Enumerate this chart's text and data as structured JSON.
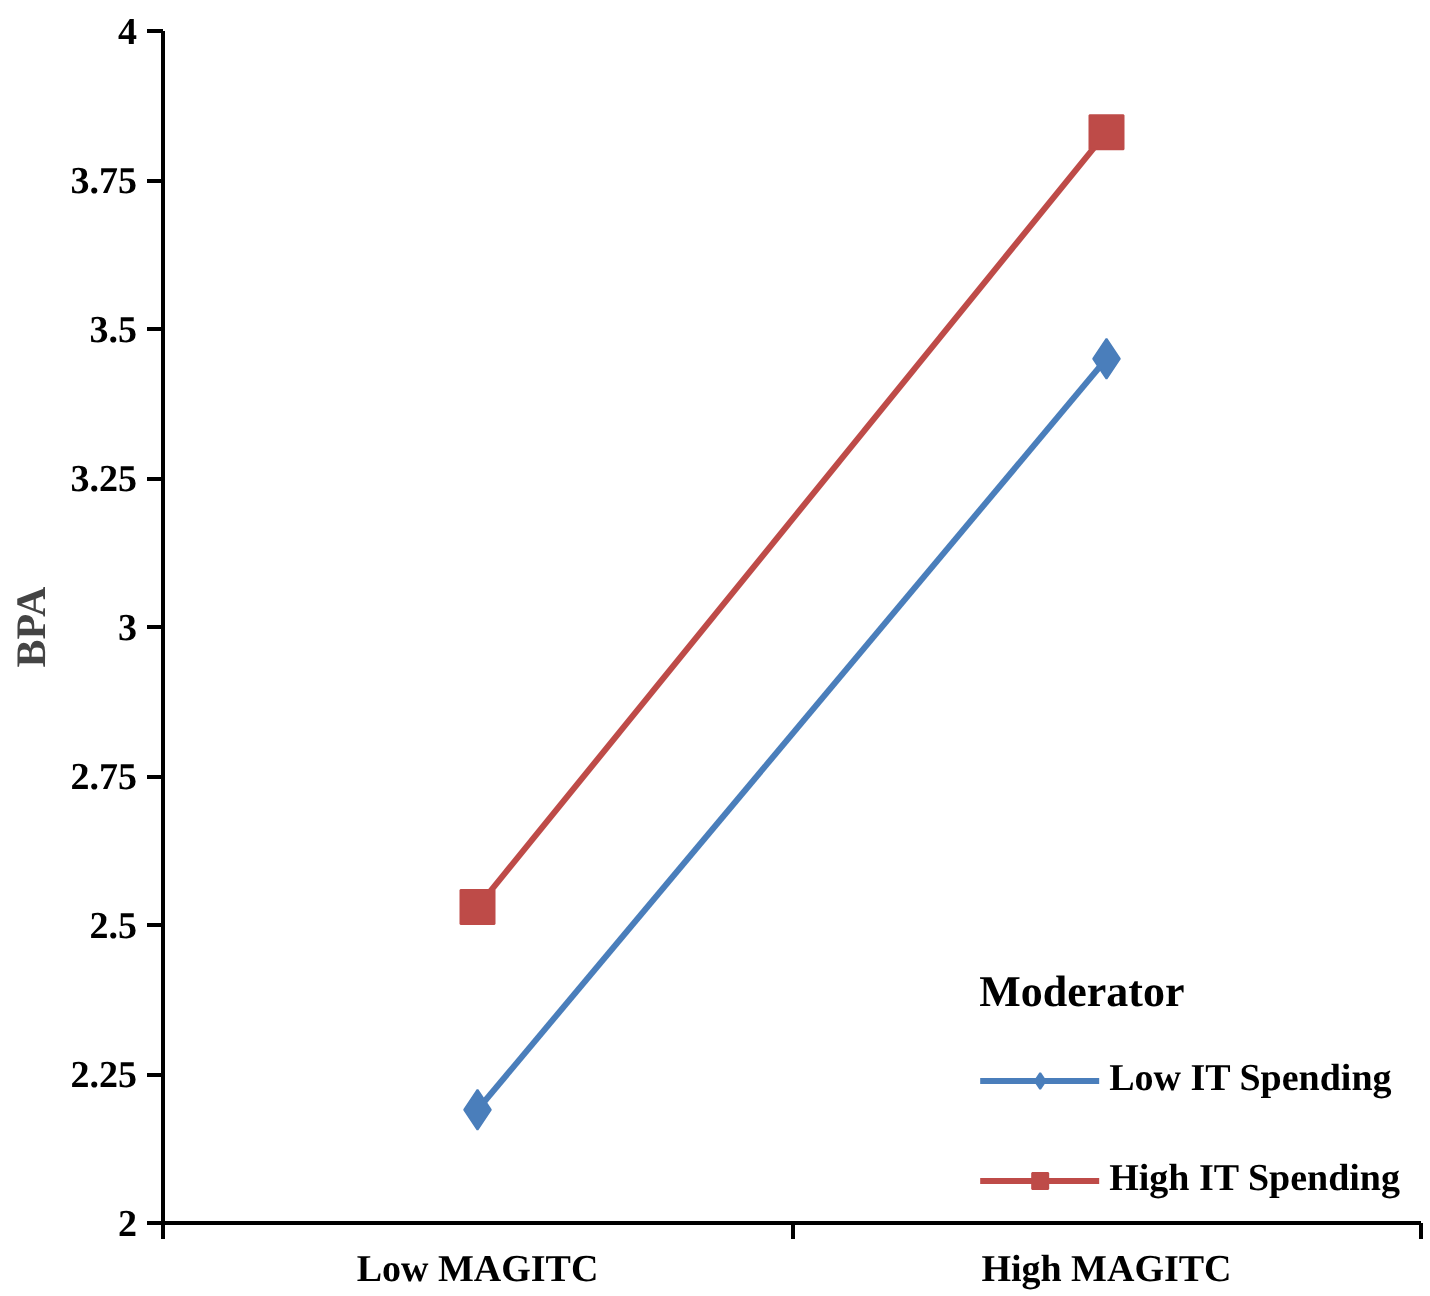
{
  "chart_data": {
    "type": "line",
    "ylabel": "BPA",
    "legend_title": "Moderator",
    "categories": [
      "Low MAGITC",
      "High MAGITC"
    ],
    "series": [
      {
        "name": "Low IT Spending",
        "color": "#4a7ebb",
        "values": [
          2.19,
          3.45
        ],
        "marker": "diamond"
      },
      {
        "name": "High IT Spending",
        "color": "#be4b48",
        "values": [
          2.53,
          3.83
        ],
        "marker": "square"
      }
    ],
    "ylim": [
      2,
      4
    ],
    "yticks": [
      2,
      {
        "value": 2.25,
        "label": "2.25"
      },
      {
        "value": 2.5,
        "label": "2.5"
      },
      {
        "value": 2.75,
        "label": "2.75"
      },
      3,
      {
        "value": 3.25,
        "label": "3.25"
      },
      {
        "value": 3.5,
        "label": "3.5"
      },
      {
        "value": 3.75,
        "label": "3.75"
      },
      4
    ],
    "grid": false,
    "legend": "bottom right",
    "line_style": "solid"
  }
}
